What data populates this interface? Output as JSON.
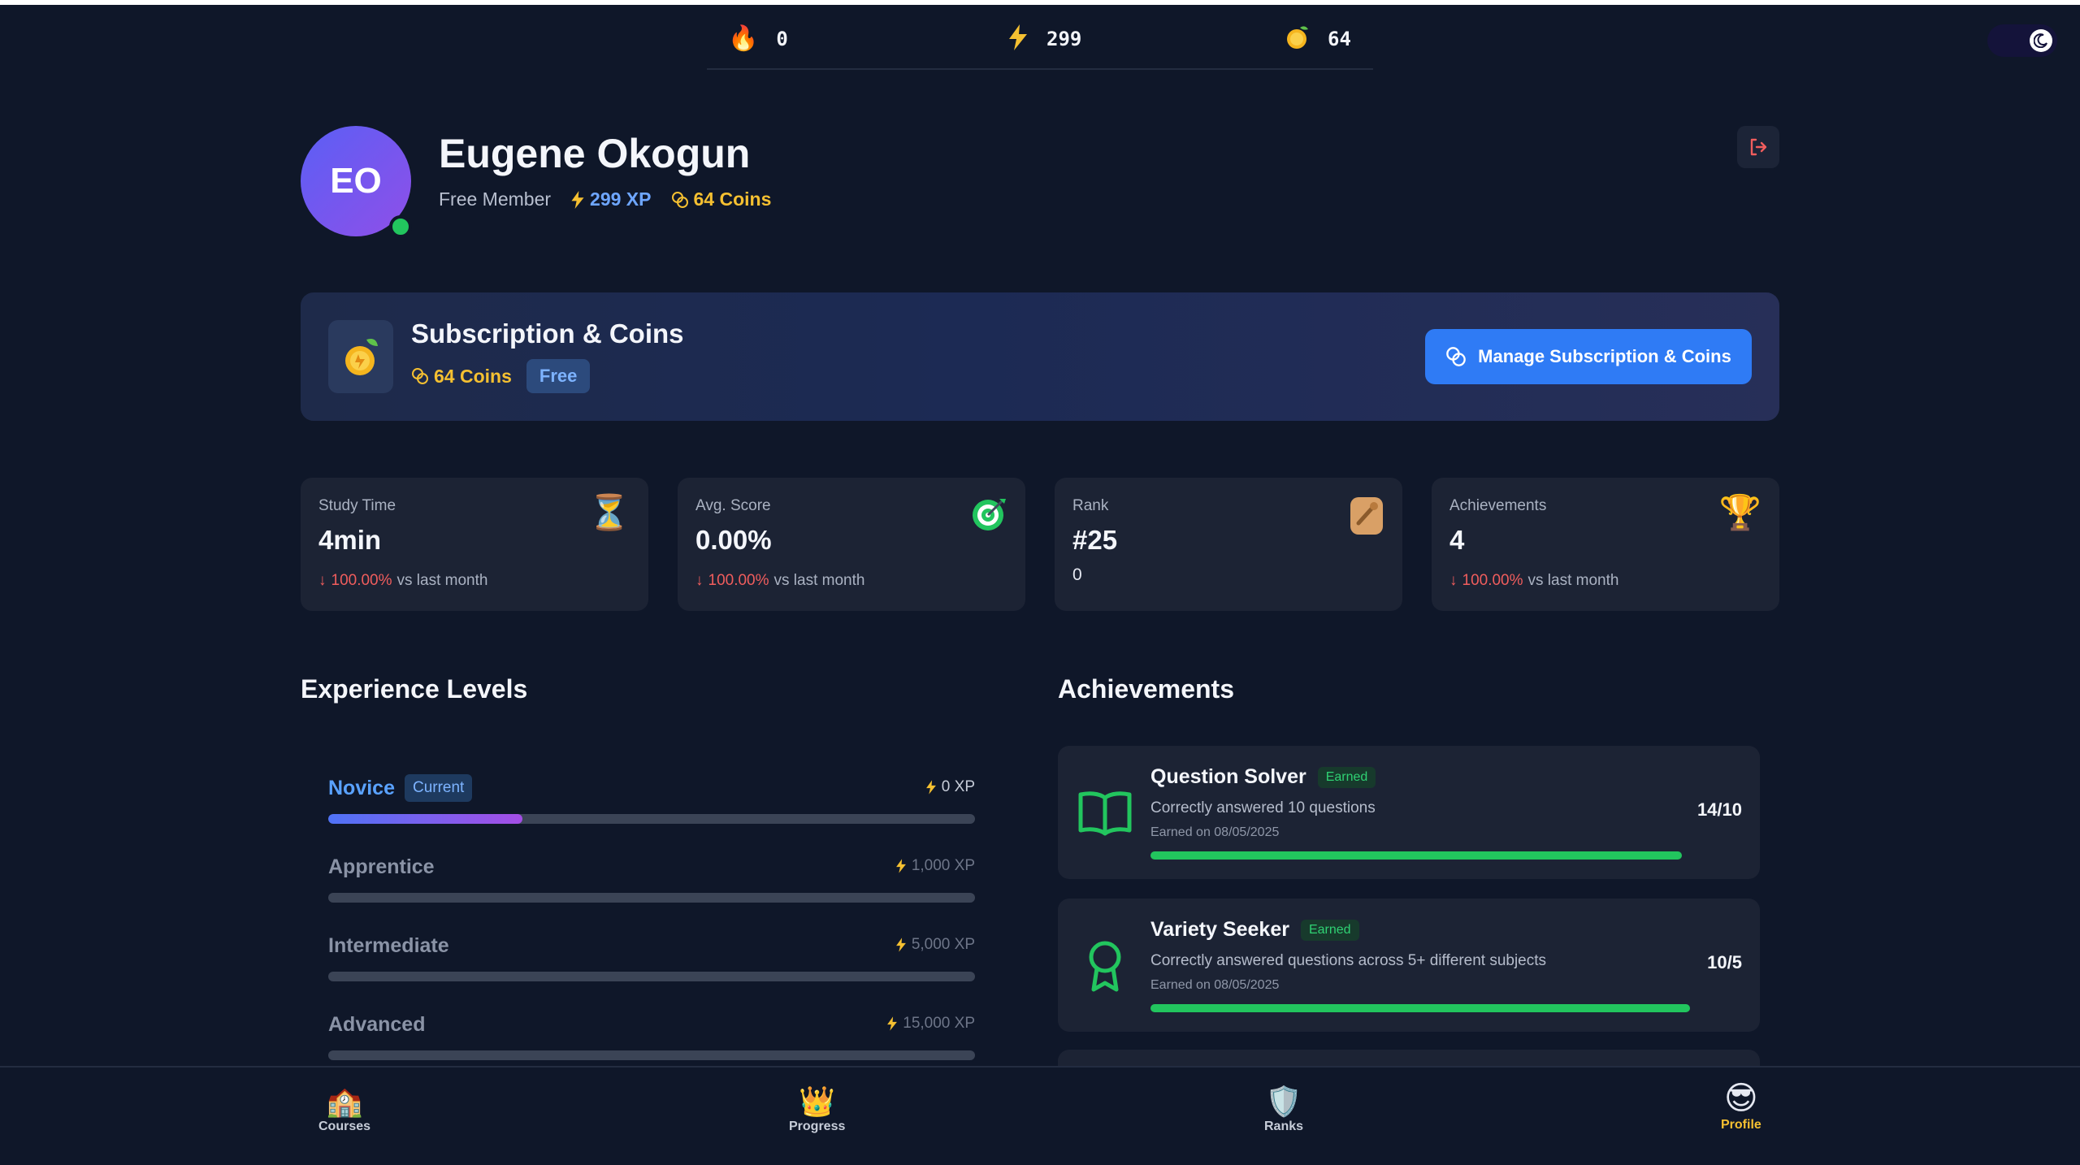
{
  "topbar": {
    "streak": {
      "icon": "flame-icon",
      "value": "0"
    },
    "xp": {
      "icon": "lightning-icon",
      "value": "299"
    },
    "coins": {
      "icon": "coin-icon",
      "value": "64"
    }
  },
  "profile": {
    "initials": "EO",
    "name": "Eugene Okogun",
    "membership": "Free Member",
    "xp_label": "299 XP",
    "coins_label": "64 Coins"
  },
  "subscription": {
    "title": "Subscription & Coins",
    "coins_label": "64 Coins",
    "plan": "Free",
    "manage_button": "Manage Subscription & Coins"
  },
  "stats": [
    {
      "label": "Study Time",
      "value": "4min",
      "delta": "100.00%",
      "delta_suffix": "vs last month",
      "icon": "hourglass-icon"
    },
    {
      "label": "Avg. Score",
      "value": "0.00%",
      "delta": "100.00%",
      "delta_suffix": "vs last month",
      "icon": "target-icon"
    },
    {
      "label": "Rank",
      "value": "#25",
      "sub": "0",
      "icon": "rank-badge-icon"
    },
    {
      "label": "Achievements",
      "value": "4",
      "delta": "100.00%",
      "delta_suffix": "vs last month",
      "icon": "trophy-icon"
    }
  ],
  "experience": {
    "title": "Experience Levels",
    "current_badge": "Current",
    "levels": [
      {
        "name": "Novice",
        "xp": "0 XP",
        "progress": 0.3,
        "current": true
      },
      {
        "name": "Apprentice",
        "xp": "1,000 XP",
        "progress": 0
      },
      {
        "name": "Intermediate",
        "xp": "5,000 XP",
        "progress": 0
      },
      {
        "name": "Advanced",
        "xp": "15,000 XP",
        "progress": 0
      }
    ]
  },
  "achievements": {
    "title": "Achievements",
    "earned_badge": "Earned",
    "items": [
      {
        "title": "Question Solver",
        "description": "Correctly answered 10 questions",
        "date": "Earned on 08/05/2025",
        "count": "14/10",
        "icon": "book-icon",
        "progress": 1
      },
      {
        "title": "Variety Seeker",
        "description": "Correctly answered questions across 5+ different subjects",
        "date": "Earned on 08/05/2025",
        "count": "10/5",
        "icon": "ribbon-icon",
        "progress": 1
      }
    ]
  },
  "nav": [
    {
      "label": "Courses",
      "icon": "school-icon",
      "active": false
    },
    {
      "label": "Progress",
      "icon": "crown-icon",
      "active": false
    },
    {
      "label": "Ranks",
      "icon": "shield-icon",
      "active": false
    },
    {
      "label": "Profile",
      "icon": "cool-face-icon",
      "active": true
    }
  ],
  "colors": {
    "background": "#0f1729",
    "card": "#1c2334",
    "accent_blue": "#2f7bf5",
    "gold": "#f5c031",
    "green": "#22c55e",
    "red": "#f05d5d"
  }
}
